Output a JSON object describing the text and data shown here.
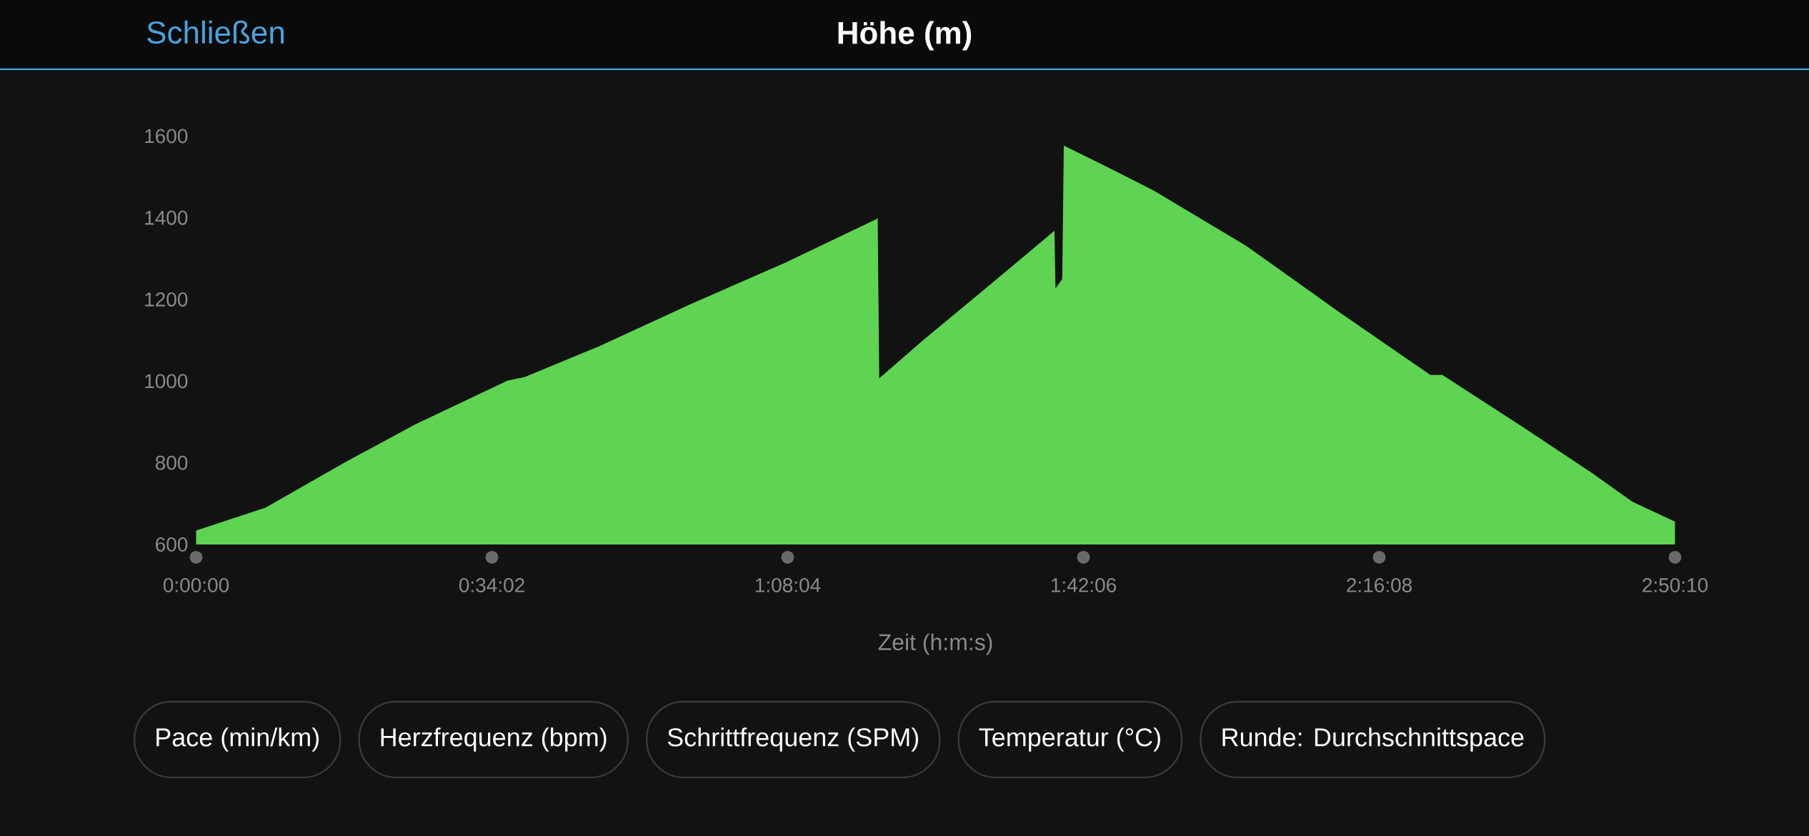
{
  "chart_data": {
    "type": "area",
    "title": "Höhe (m)",
    "xlabel": "Zeit (h:m:s)",
    "color": "#5fd452",
    "x": [
      0,
      0.133,
      0.288,
      0.42,
      0.597,
      0.63,
      0.774,
      0.951,
      1.128,
      1.305,
      1.307,
      1.31,
      1.394,
      1.527,
      1.646,
      1.648,
      1.661,
      1.664,
      1.748,
      1.836,
      2.013,
      2.19,
      2.367,
      2.39,
      2.544,
      2.677,
      2.754,
      2.836
    ],
    "values": [
      634,
      690,
      803,
      894,
      1001,
      1010,
      1086,
      1190,
      1289,
      1397,
      1400,
      1007,
      1100,
      1241,
      1368,
      1227,
      1250,
      1577,
      1524,
      1467,
      1332,
      1171,
      1015,
      1015,
      888,
      775,
      705,
      656
    ],
    "xlim": [
      0,
      2.8361
    ],
    "ylim": [
      600,
      1600
    ],
    "yticks": [
      600,
      800,
      1000,
      1200,
      1400,
      1600
    ],
    "xticks": [
      {
        "value": 0,
        "label": "0:00:00"
      },
      {
        "value": 0.5672,
        "label": "0:34:02"
      },
      {
        "value": 1.1344,
        "label": "1:08:04"
      },
      {
        "value": 1.7017,
        "label": "1:42:06"
      },
      {
        "value": 2.2689,
        "label": "2:16:08"
      },
      {
        "value": 2.8361,
        "label": "2:50:10"
      }
    ],
    "annotations": [
      "Schließen",
      "Pace (min/km)",
      "Herzfrequenz (bpm)",
      "Schrittfrequenz (SPM)",
      "Temperatur (°C)",
      "Runde: Durchschnittspace"
    ]
  }
}
